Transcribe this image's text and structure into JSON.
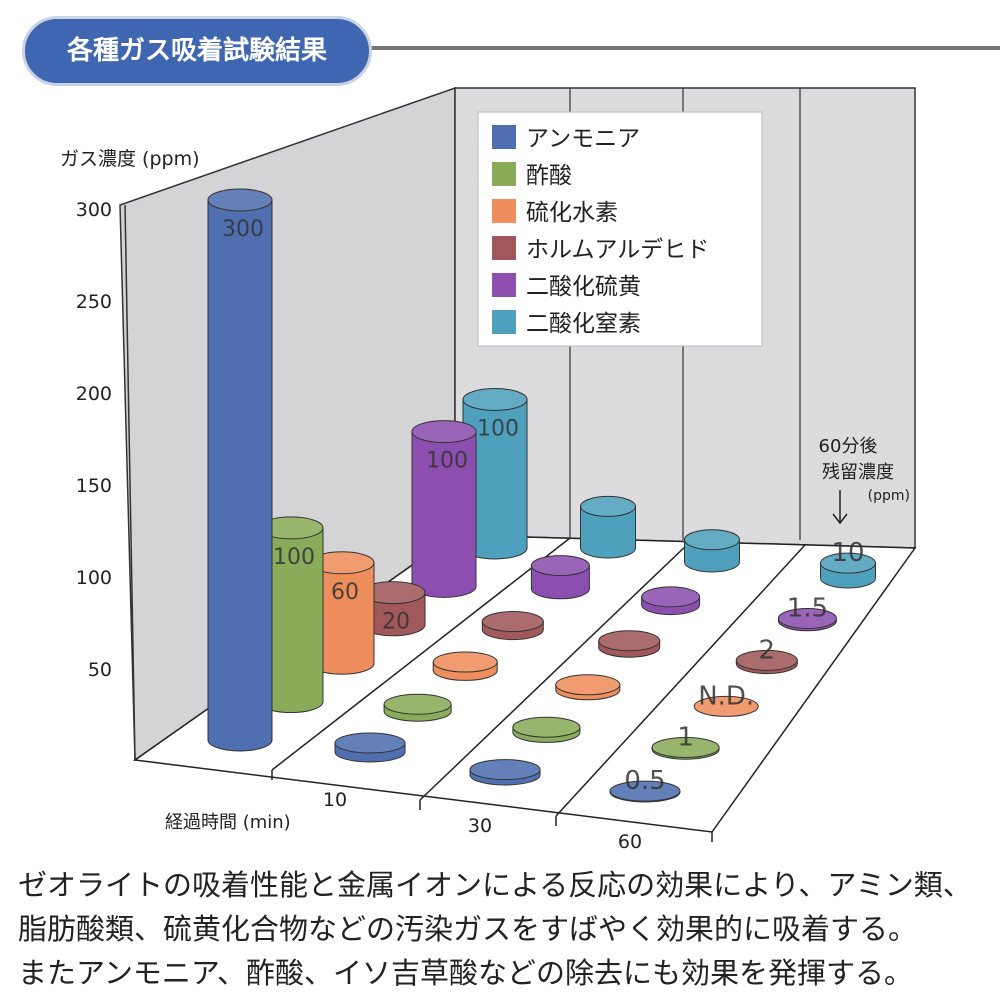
{
  "title": "各種ガス吸着試験結果",
  "chart_data": {
    "type": "bar",
    "subtype": "3d-cylinder",
    "ylabel": "ガス濃度 (ppm)",
    "xlabel": "経過時間 (min)",
    "ylim": [
      0,
      300
    ],
    "yticks": [
      50,
      100,
      150,
      200,
      250,
      300
    ],
    "categories": [
      "0",
      "10",
      "30",
      "60"
    ],
    "xtick_labels": [
      "10",
      "30",
      "60"
    ],
    "legend_position": "top-right",
    "series": [
      {
        "name": "アンモニア",
        "color": "#4f6fb0",
        "values": [
          300,
          5,
          3,
          0.5
        ],
        "labels": [
          "300",
          "",
          "",
          "0.5"
        ]
      },
      {
        "name": "酢酸",
        "color": "#8aab5a",
        "values": [
          100,
          4,
          3,
          1
        ],
        "labels": [
          "100",
          "",
          "",
          "1"
        ]
      },
      {
        "name": "硫化水素",
        "color": "#ee8e5c",
        "values": [
          60,
          5,
          3,
          0
        ],
        "labels": [
          "60",
          "",
          "",
          "N.D."
        ]
      },
      {
        "name": "ホルムアルデヒド",
        "color": "#a0585a",
        "values": [
          20,
          5,
          4,
          2
        ],
        "labels": [
          "20",
          "",
          "",
          "2"
        ]
      },
      {
        "name": "二酸化硫黄",
        "color": "#8c4fb0",
        "values": [
          100,
          15,
          5,
          1.5
        ],
        "labels": [
          "100",
          "",
          "",
          "1.5"
        ]
      },
      {
        "name": "二酸化窒素",
        "color": "#4fa0bc",
        "values": [
          100,
          28,
          15,
          10
        ],
        "labels": [
          "100",
          "",
          "",
          "10"
        ]
      }
    ],
    "annotation": {
      "line1": "60分後",
      "line2": "残留濃度",
      "unit": "(ppm)"
    }
  },
  "description": [
    "ゼオライトの吸着性能と金属イオンによる反応の効果により、アミン類、",
    "脂肪酸類、硫黄化合物などの汚染ガスをすばやく効果的に吸着する。",
    "またアンモニア、酢酸、イソ吉草酸などの除去にも効果を発揮する。"
  ]
}
